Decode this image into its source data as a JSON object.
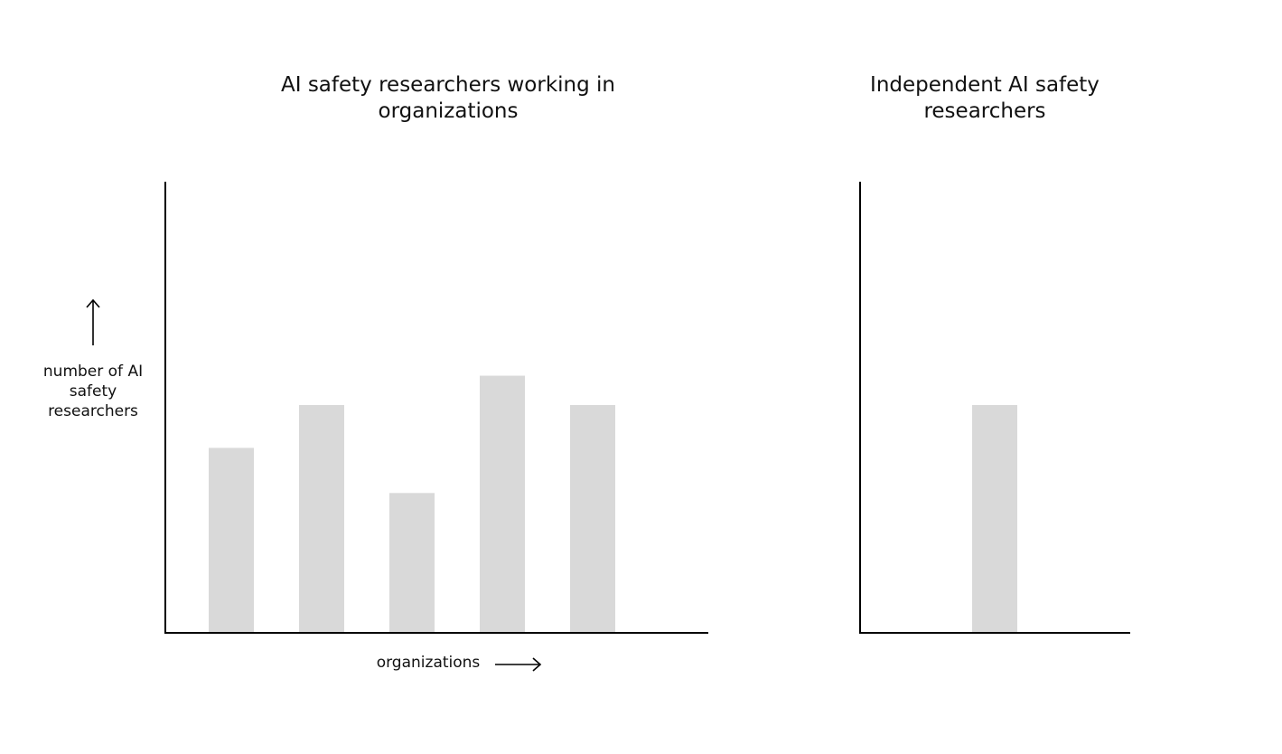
{
  "chart_data": [
    {
      "type": "bar",
      "title": "AI safety researchers working in organizations",
      "xlabel": "organizations",
      "ylabel": "number of AI safety researchers",
      "categories": [
        "",
        "",
        "",
        "",
        ""
      ],
      "values": [
        4.1,
        5.05,
        3.1,
        5.7,
        5.05
      ],
      "ylim": [
        0,
        10
      ],
      "grid": false,
      "bar_color": "#d9d9d9"
    },
    {
      "type": "bar",
      "title": "Independent AI safety researchers",
      "xlabel": "",
      "ylabel": "",
      "categories": [
        ""
      ],
      "values": [
        5.05
      ],
      "ylim": [
        0,
        10
      ],
      "grid": false,
      "bar_color": "#d9d9d9"
    }
  ],
  "colors": {
    "axis": "#000000",
    "bar": "#d9d9d9"
  },
  "icons": {
    "y_arrow": "arrow-up-icon",
    "x_arrow": "arrow-right-icon"
  }
}
